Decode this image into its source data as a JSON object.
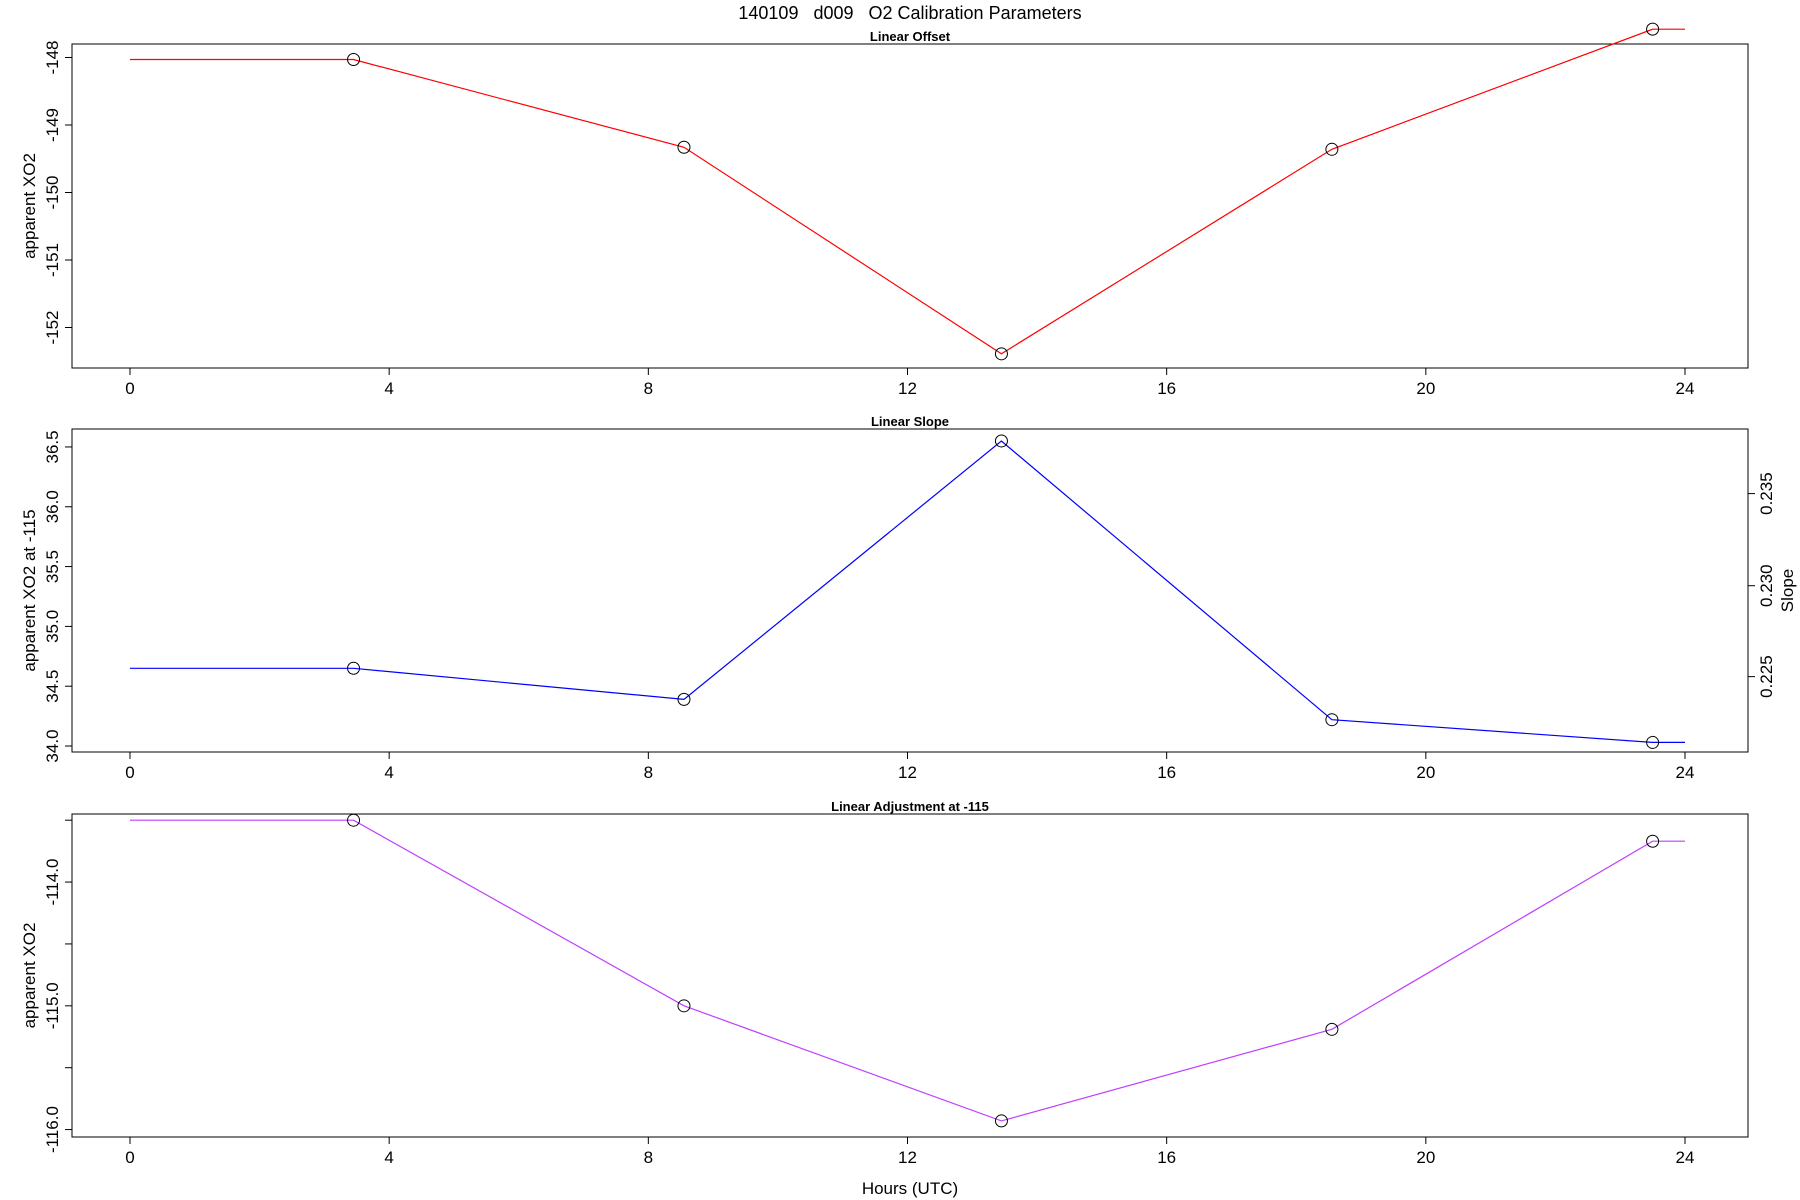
{
  "figure": {
    "title": "140109   d009   O2 Calibration Parameters",
    "xlabel": "Hours (UTC)"
  },
  "chart_data": [
    {
      "type": "line",
      "title": "Linear Offset",
      "xlabel": "",
      "ylabel": "apparent XO2",
      "xlim": [
        0,
        24
      ],
      "xticks": [
        0,
        4,
        8,
        12,
        16,
        20,
        24
      ],
      "ylim": [
        -152.6,
        -147.8
      ],
      "yticks": [
        -148,
        -149,
        -150,
        -151,
        -152
      ],
      "ytick_labels": [
        "-148",
        "-149",
        "-150",
        "-151",
        "-152"
      ],
      "color": "#ff0000",
      "x": [
        0,
        3.45,
        8.55,
        13.45,
        18.55,
        23.5,
        24
      ],
      "y": [
        -148.03,
        -148.03,
        -149.33,
        -152.39,
        -149.36,
        -147.58,
        -147.58
      ],
      "markers_x": [
        3.45,
        8.55,
        13.45,
        18.55,
        23.5
      ],
      "markers_y": [
        -148.03,
        -149.33,
        -152.39,
        -149.36,
        -147.58
      ]
    },
    {
      "type": "line",
      "title": "Linear Slope",
      "xlabel": "",
      "ylabel": "apparent XO2 at -115",
      "ylabel_right": "Slope",
      "xlim": [
        0,
        24
      ],
      "xticks": [
        0,
        4,
        8,
        12,
        16,
        20,
        24
      ],
      "ylim": [
        33.95,
        36.65
      ],
      "yticks": [
        34.0,
        34.5,
        35.0,
        35.5,
        36.0,
        36.5
      ],
      "ytick_labels": [
        "34.0",
        "34.5",
        "35.0",
        "35.5",
        "36.0",
        "36.5"
      ],
      "y2_ticks": [
        0.225,
        0.23,
        0.235
      ],
      "y2_tick_labels": [
        "0.225",
        "0.230",
        "0.235"
      ],
      "y2_at_y": [
        {
          "slope": 0.225,
          "y": 34.58
        },
        {
          "slope": 0.23,
          "y": 35.34
        },
        {
          "slope": 0.235,
          "y": 36.11
        }
      ],
      "color": "#0000ff",
      "x": [
        0,
        3.45,
        8.55,
        13.45,
        18.55,
        23.5,
        24
      ],
      "y": [
        34.65,
        34.65,
        34.39,
        36.55,
        34.22,
        34.03,
        34.03
      ],
      "markers_x": [
        3.45,
        8.55,
        13.45,
        18.55,
        23.5
      ],
      "markers_y": [
        34.65,
        34.39,
        36.55,
        34.22,
        34.03
      ]
    },
    {
      "type": "line",
      "title": "Linear Adjustment at -115",
      "xlabel": "Hours (UTC)",
      "ylabel": "apparent XO2",
      "xlim": [
        0,
        24
      ],
      "xticks": [
        0,
        4,
        8,
        12,
        16,
        20,
        24
      ],
      "ylim": [
        -116.06,
        -113.45
      ],
      "yticks": [
        -116.0,
        -115.5,
        -115.0,
        -114.5,
        -114.0,
        -113.5
      ],
      "ytick_labels": [
        "-116.0",
        "",
        "-115.0",
        "",
        "-114.0",
        ""
      ],
      "color": "#bf3fff",
      "x": [
        0,
        3.45,
        8.55,
        13.45,
        18.55,
        23.5,
        24
      ],
      "y": [
        -113.5,
        -113.5,
        -115.0,
        -115.93,
        -115.19,
        -113.67,
        -113.67
      ],
      "markers_x": [
        3.45,
        8.55,
        13.45,
        18.55,
        23.5
      ],
      "markers_y": [
        -113.5,
        -115.0,
        -115.93,
        -115.19,
        -113.67
      ]
    }
  ]
}
